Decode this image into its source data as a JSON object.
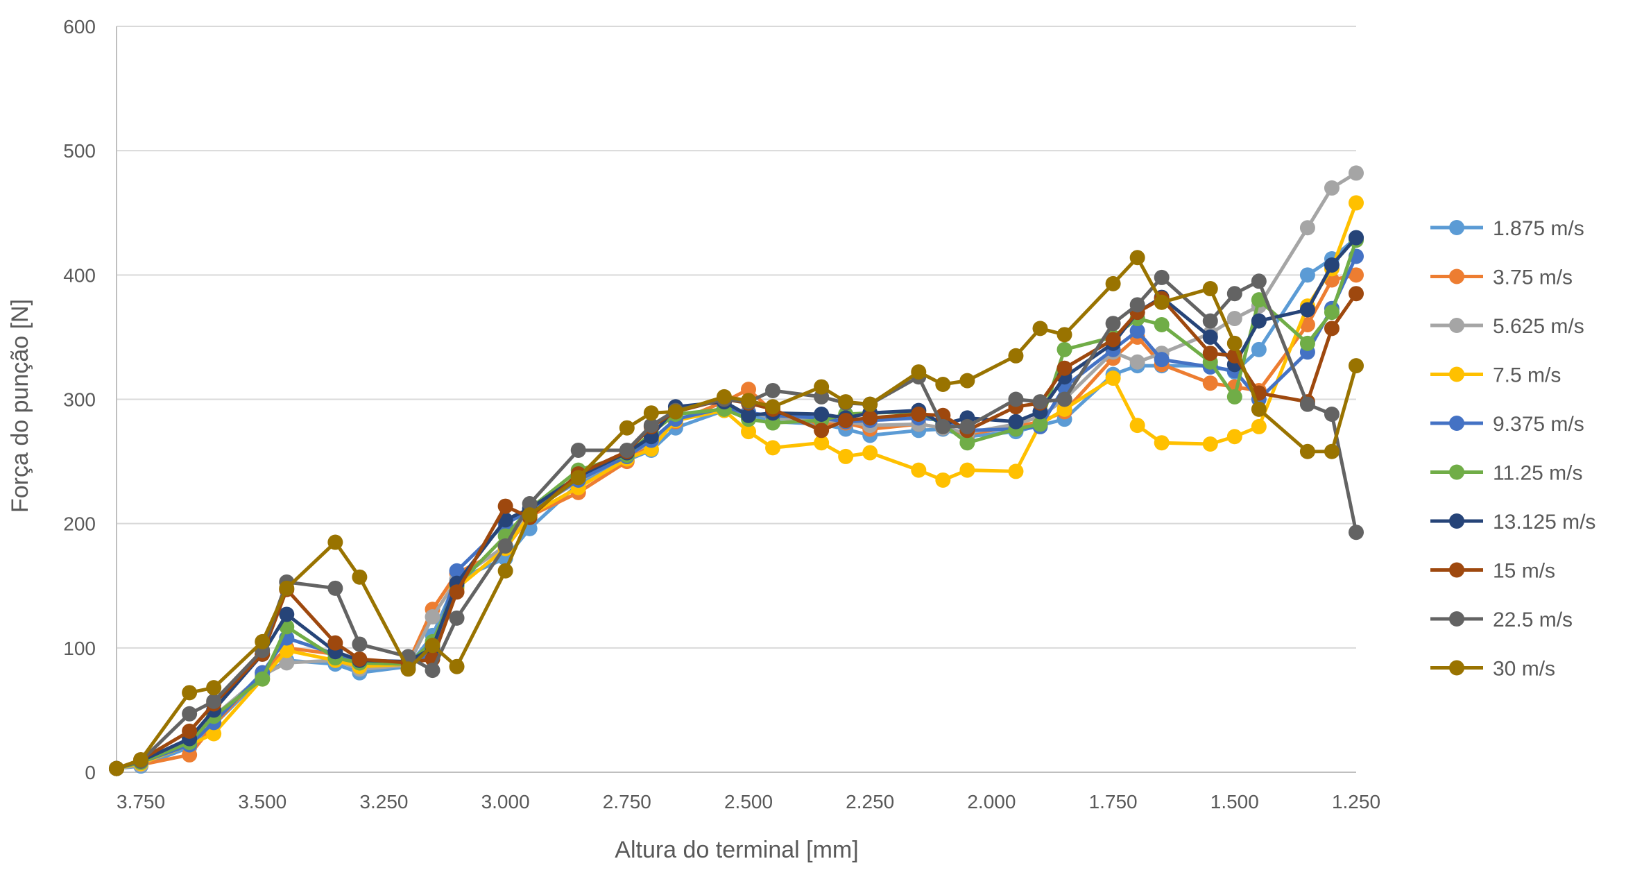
{
  "chart_data": {
    "type": "line",
    "title": "",
    "xlabel": "Altura do terminal [mm]",
    "ylabel": "Força do punção [N]",
    "xlim": [
      3.8,
      1.25
    ],
    "ylim": [
      0,
      600
    ],
    "x_reversed": true,
    "grid": "horizontal",
    "legend_position": "right",
    "x_ticks": [
      3.75,
      3.5,
      3.25,
      3.0,
      2.75,
      2.5,
      2.25,
      2.0,
      1.75,
      1.5,
      1.25
    ],
    "x_tick_labels": [
      "3.750",
      "3.500",
      "3.250",
      "3.000",
      "2.750",
      "2.500",
      "2.250",
      "2.000",
      "1.750",
      "1.500",
      "1.250"
    ],
    "y_ticks": [
      0,
      100,
      200,
      300,
      400,
      500,
      600
    ],
    "y_tick_labels": [
      "0",
      "100",
      "200",
      "300",
      "400",
      "500",
      "600"
    ],
    "x": [
      3.8,
      3.75,
      3.65,
      3.6,
      3.5,
      3.45,
      3.35,
      3.3,
      3.2,
      3.15,
      3.1,
      3.0,
      2.95,
      2.85,
      2.75,
      2.7,
      2.65,
      2.55,
      2.5,
      2.45,
      2.35,
      2.3,
      2.25,
      2.15,
      2.1,
      2.05,
      1.95,
      1.9,
      1.85,
      1.75,
      1.7,
      1.65,
      1.55,
      1.5,
      1.45,
      1.35,
      1.3,
      1.25
    ],
    "series": [
      {
        "name": "1.875 m/s",
        "color": "#5B9BD5",
        "values": [
          3,
          5,
          20,
          38,
          77,
          90,
          87,
          80,
          85,
          110,
          155,
          172,
          196,
          232,
          251,
          259,
          277,
          291,
          288,
          282,
          280,
          276,
          271,
          275,
          276,
          270,
          274,
          279,
          284,
          320,
          327,
          327,
          327,
          322,
          340,
          400,
          413,
          430
        ]
      },
      {
        "name": "3.75 m/s",
        "color": "#ED7D31",
        "values": [
          3,
          6,
          14,
          38,
          80,
          100,
          95,
          85,
          88,
          131,
          160,
          180,
          206,
          225,
          250,
          265,
          282,
          298,
          308,
          290,
          280,
          281,
          276,
          280,
          277,
          272,
          278,
          282,
          290,
          333,
          350,
          328,
          313,
          310,
          307,
          360,
          396,
          400
        ]
      },
      {
        "name": "5.625 m/s",
        "color": "#A5A5A5",
        "values": [
          3,
          6,
          25,
          45,
          78,
          88,
          90,
          83,
          86,
          125,
          155,
          182,
          210,
          234,
          255,
          265,
          283,
          292,
          290,
          285,
          283,
          282,
          279,
          280,
          277,
          273,
          280,
          286,
          300,
          338,
          330,
          337,
          353,
          365,
          375,
          438,
          470,
          482
        ]
      },
      {
        "name": "7.5 m/s",
        "color": "#FFC000",
        "values": [
          3,
          7,
          22,
          31,
          75,
          98,
          90,
          85,
          87,
          104,
          148,
          180,
          207,
          229,
          252,
          260,
          283,
          291,
          274,
          261,
          265,
          254,
          257,
          243,
          235,
          243,
          242,
          280,
          292,
          317,
          279,
          265,
          264,
          270,
          278,
          375,
          405,
          458
        ]
      },
      {
        "name": "9.375 m/s",
        "color": "#4472C4",
        "values": [
          3,
          8,
          22,
          40,
          80,
          108,
          95,
          88,
          87,
          95,
          162,
          200,
          210,
          235,
          254,
          267,
          284,
          293,
          289,
          287,
          285,
          282,
          283,
          285,
          283,
          275,
          276,
          278,
          310,
          340,
          355,
          332,
          326,
          323,
          300,
          338,
          373,
          415
        ]
      },
      {
        "name": "11.25 m/s",
        "color": "#70AD47",
        "values": [
          3,
          8,
          24,
          45,
          75,
          117,
          92,
          88,
          87,
          105,
          150,
          190,
          212,
          243,
          255,
          273,
          288,
          292,
          284,
          281,
          283,
          288,
          289,
          290,
          280,
          265,
          276,
          280,
          340,
          350,
          365,
          360,
          330,
          302,
          380,
          345,
          370,
          428
        ]
      },
      {
        "name": "13.125 m/s",
        "color": "#264478",
        "values": [
          3,
          9,
          27,
          50,
          95,
          127,
          97,
          90,
          89,
          100,
          152,
          203,
          212,
          238,
          257,
          270,
          294,
          298,
          287,
          289,
          288,
          285,
          289,
          291,
          280,
          285,
          282,
          290,
          318,
          345,
          370,
          382,
          350,
          328,
          363,
          372,
          408,
          430
        ]
      },
      {
        "name": "15 m/s",
        "color": "#9E480E",
        "values": [
          3,
          10,
          33,
          55,
          95,
          147,
          104,
          91,
          88,
          91,
          145,
          214,
          205,
          240,
          258,
          278,
          290,
          300,
          297,
          292,
          275,
          283,
          285,
          288,
          287,
          275,
          294,
          297,
          325,
          348,
          370,
          381,
          337,
          335,
          305,
          298,
          357,
          385
        ]
      },
      {
        "name": "22.5 m/s",
        "color": "#636363",
        "values": [
          3,
          9,
          47,
          57,
          98,
          153,
          148,
          103,
          93,
          82,
          124,
          182,
          216,
          259,
          259,
          279,
          291,
          300,
          298,
          307,
          302,
          297,
          296,
          318,
          278,
          278,
          300,
          298,
          300,
          361,
          376,
          398,
          363,
          385,
          395,
          296,
          288,
          193
        ]
      },
      {
        "name": "30 m/s",
        "color": "#997300",
        "values": [
          3,
          10,
          64,
          68,
          105,
          148,
          185,
          157,
          83,
          102,
          85,
          162,
          207,
          237,
          277,
          289,
          290,
          302,
          299,
          294,
          310,
          298,
          296,
          322,
          312,
          315,
          335,
          357,
          352,
          393,
          414,
          378,
          389,
          345,
          292,
          258,
          258,
          327
        ]
      }
    ]
  }
}
